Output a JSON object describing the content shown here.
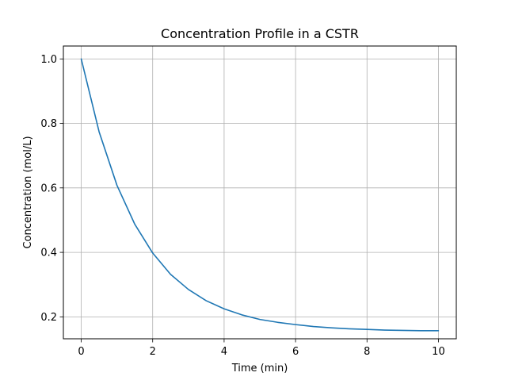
{
  "chart_data": {
    "type": "line",
    "title": "Concentration Profile in a CSTR",
    "xlabel": "Time (min)",
    "ylabel": "Concentration (mol/L)",
    "xlim": [
      -0.5,
      10.5
    ],
    "ylim": [
      0.132,
      1.04
    ],
    "xticks": [
      0,
      2,
      4,
      6,
      8,
      10
    ],
    "xtick_labels": [
      "0",
      "2",
      "4",
      "6",
      "8",
      "10"
    ],
    "yticks": [
      0.2,
      0.4,
      0.6,
      0.8,
      1.0
    ],
    "ytick_labels": [
      "0.2",
      "0.4",
      "0.6",
      "0.8",
      "1.0"
    ],
    "grid": true,
    "series": [
      {
        "color": "#1f77b4",
        "x": [
          0,
          0.5,
          1,
          1.5,
          2,
          2.5,
          3,
          3.5,
          4,
          4.5,
          5,
          5.5,
          6,
          6.5,
          7,
          7.5,
          8,
          8.5,
          9,
          9.5,
          10
        ],
        "y": [
          1.0,
          0.774,
          0.608,
          0.487,
          0.398,
          0.332,
          0.285,
          0.25,
          0.225,
          0.206,
          0.192,
          0.183,
          0.176,
          0.17,
          0.166,
          0.163,
          0.161,
          0.159,
          0.158,
          0.157,
          0.157
        ]
      }
    ]
  }
}
